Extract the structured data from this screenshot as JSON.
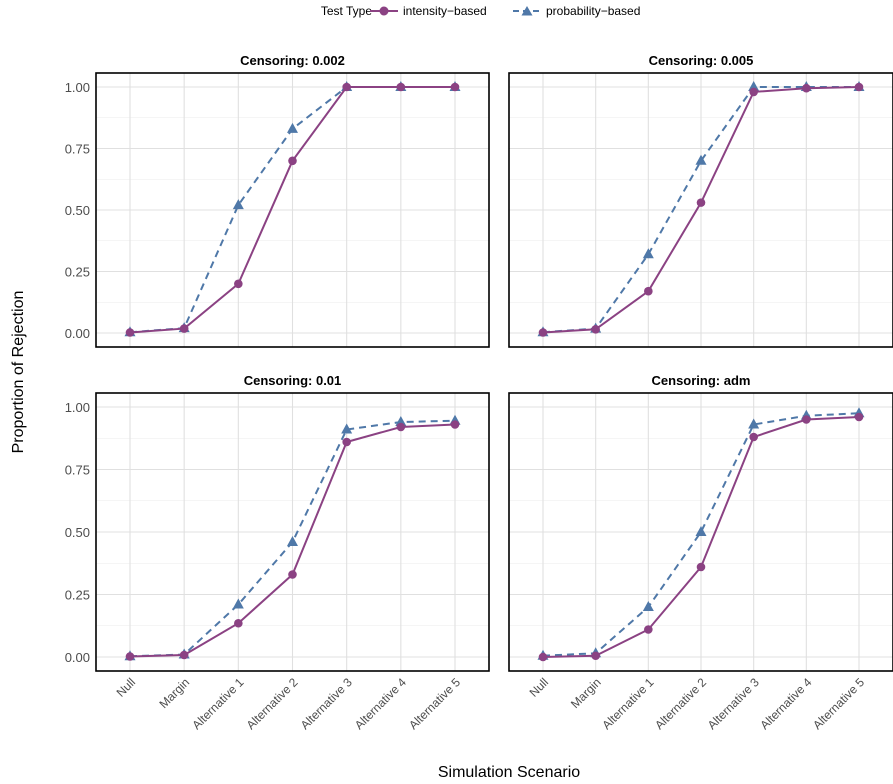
{
  "chart_data": {
    "type": "line",
    "xlabel": "Simulation Scenario",
    "ylabel": "Proportion of Rejection",
    "categories": [
      "Null",
      "Margin",
      "Alternative 1",
      "Alternative 2",
      "Alternative 3",
      "Alternative 4",
      "Alternative 5"
    ],
    "ylim": [
      0,
      1
    ],
    "yticks": [
      "0.00",
      "0.25",
      "0.50",
      "0.75",
      "1.00"
    ],
    "grid": true,
    "legend": {
      "title": "Test Type",
      "position": "top",
      "entries": [
        {
          "name": "intensity-based",
          "label": "intensity−based",
          "color": "#8B4283",
          "marker": "circle",
          "line": "solid"
        },
        {
          "name": "probability-based",
          "label": "probability−based",
          "color": "#4F78A8",
          "marker": "triangle",
          "line": "dashed"
        }
      ]
    },
    "panels": [
      {
        "title": "Censoring: 0.002",
        "series": [
          {
            "name": "intensity-based",
            "values": [
              0.002,
              0.018,
              0.2,
              0.7,
              1.0,
              1.0,
              1.0
            ]
          },
          {
            "name": "probability-based",
            "values": [
              0.003,
              0.02,
              0.52,
              0.83,
              1.0,
              1.0,
              1.0
            ]
          }
        ]
      },
      {
        "title": "Censoring: 0.005",
        "series": [
          {
            "name": "intensity-based",
            "values": [
              0.002,
              0.015,
              0.17,
              0.53,
              0.98,
              0.995,
              1.0
            ]
          },
          {
            "name": "probability-based",
            "values": [
              0.003,
              0.018,
              0.32,
              0.7,
              1.0,
              1.0,
              1.0
            ]
          }
        ]
      },
      {
        "title": "Censoring: 0.01",
        "series": [
          {
            "name": "intensity-based",
            "values": [
              0.002,
              0.008,
              0.135,
              0.33,
              0.86,
              0.92,
              0.93
            ]
          },
          {
            "name": "probability-based",
            "values": [
              0.003,
              0.01,
              0.21,
              0.46,
              0.91,
              0.94,
              0.945
            ]
          }
        ]
      },
      {
        "title": "Censoring: adm",
        "series": [
          {
            "name": "intensity-based",
            "values": [
              0.0,
              0.005,
              0.11,
              0.36,
              0.88,
              0.95,
              0.96
            ]
          },
          {
            "name": "probability-based",
            "values": [
              0.005,
              0.015,
              0.2,
              0.5,
              0.93,
              0.965,
              0.975
            ]
          }
        ]
      }
    ]
  }
}
